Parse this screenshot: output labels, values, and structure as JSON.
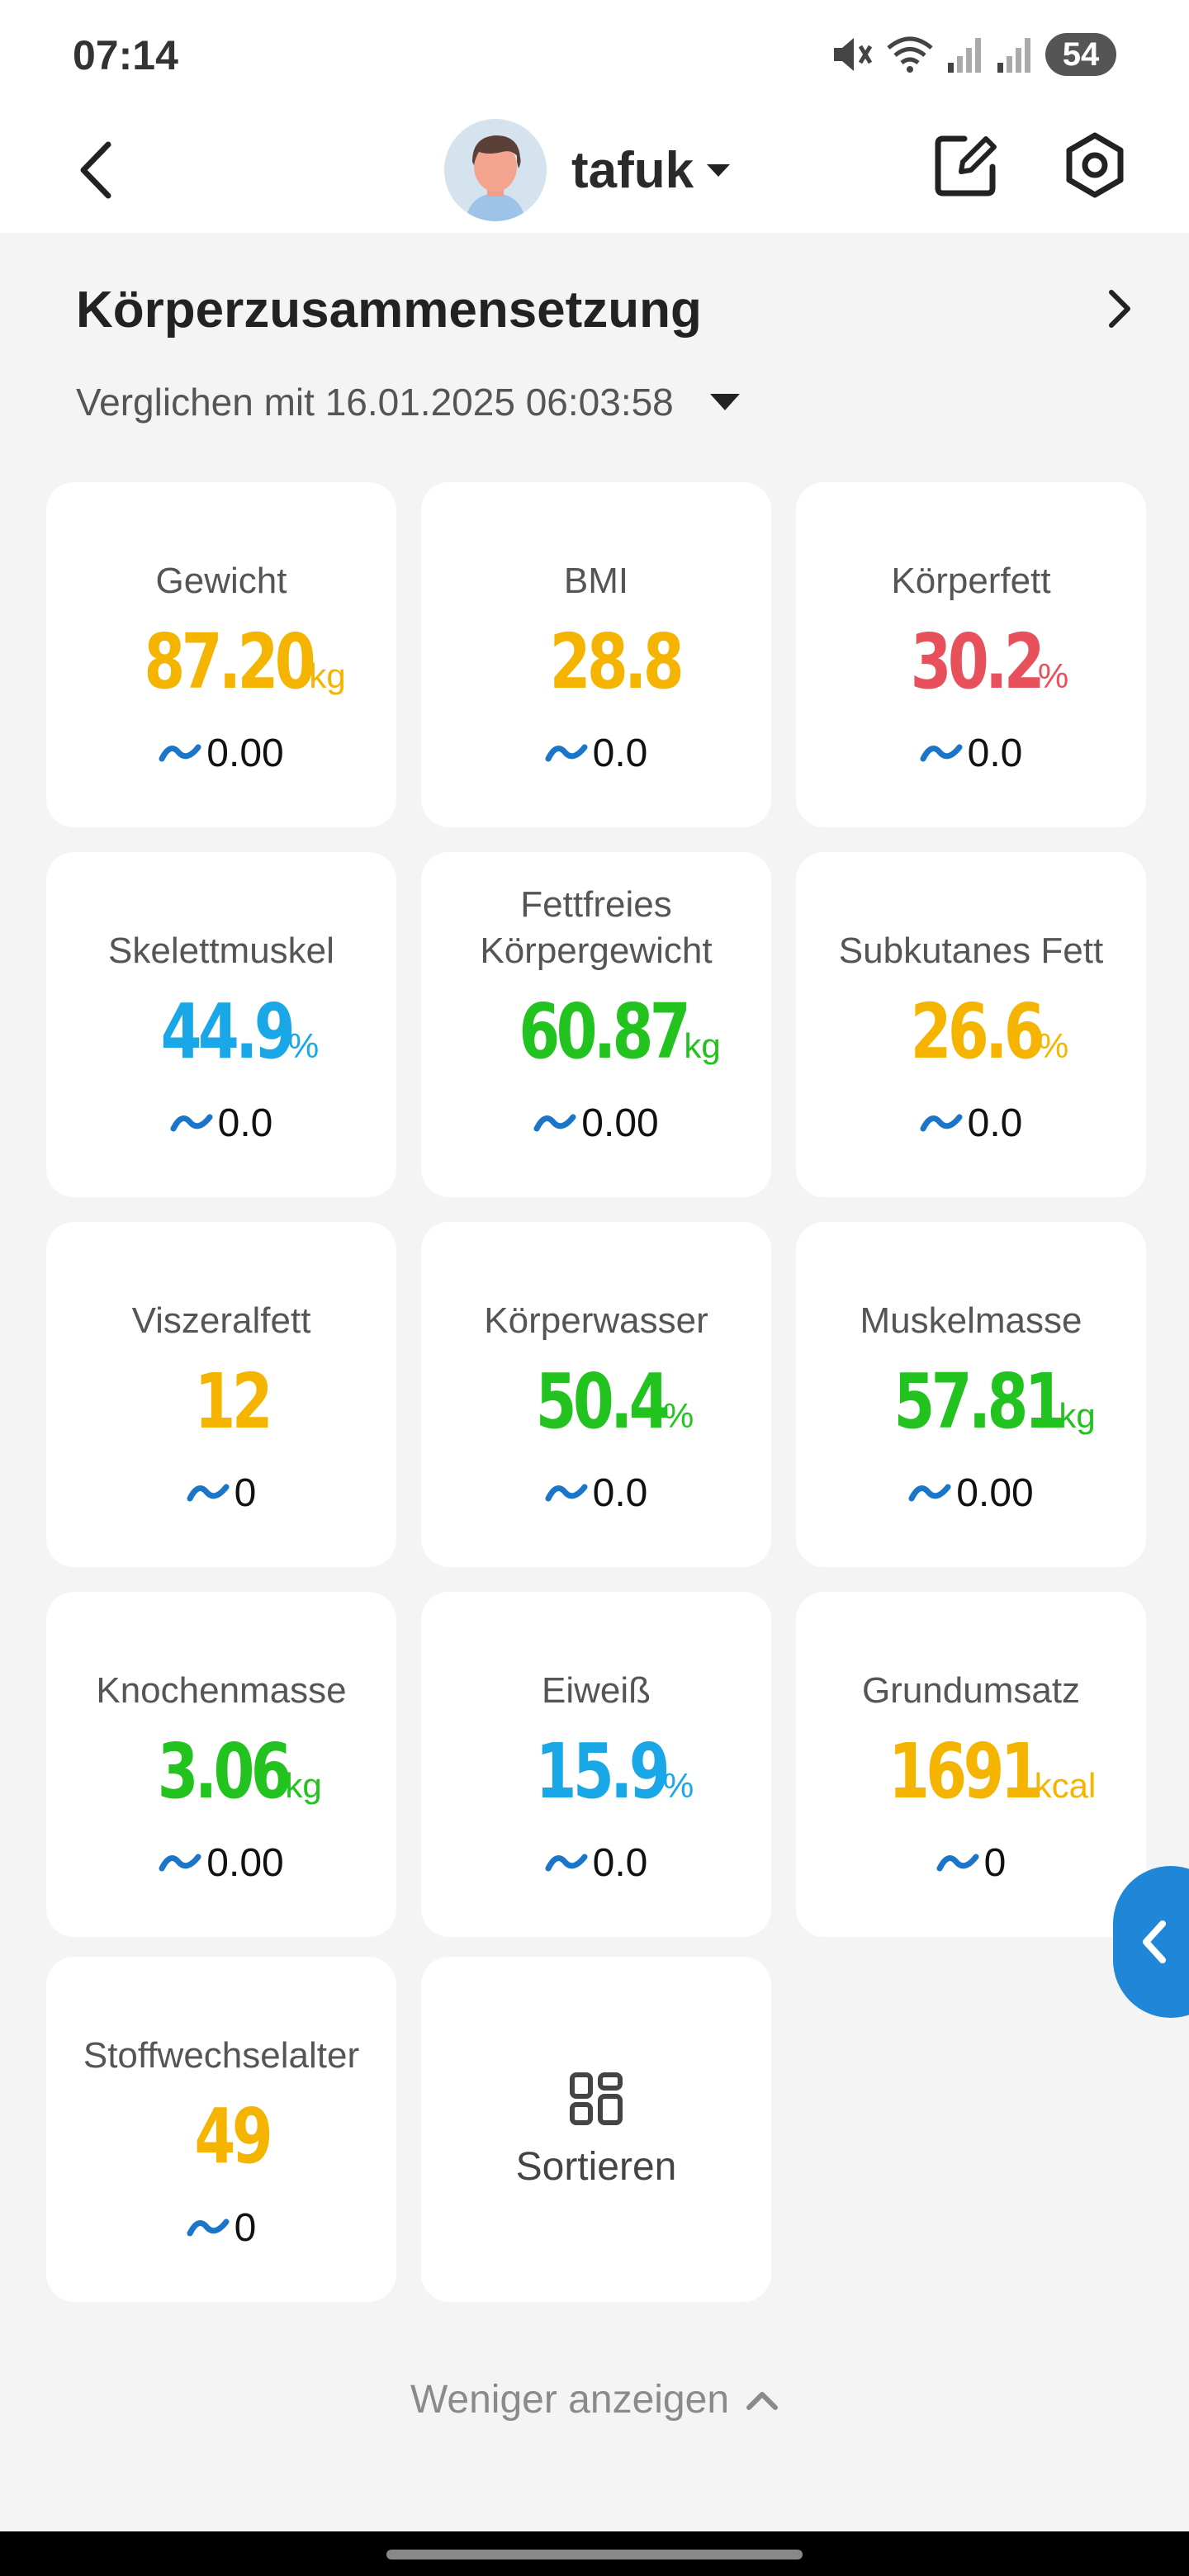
{
  "status_bar": {
    "time": "07:14",
    "battery": "54",
    "icons": [
      "mute-icon",
      "wifi-icon",
      "signal-icon",
      "signal-icon"
    ]
  },
  "header": {
    "username": "tafuk"
  },
  "section": {
    "title": "Körperzusammensetzung",
    "compare_text": "Verglichen mit 16.01.2025 06:03:58"
  },
  "colors": {
    "yellow": "#f5b400",
    "red": "#e8505b",
    "blue": "#1aa7e8",
    "green": "#22c31e",
    "accent": "#1f86d8"
  },
  "metrics": [
    {
      "label": "Gewicht",
      "value": "87.20",
      "unit": "kg",
      "delta": "0.00",
      "color": "yellow"
    },
    {
      "label": "BMI",
      "value": "28.8",
      "unit": "",
      "delta": "0.0",
      "color": "yellow"
    },
    {
      "label": "Körperfett",
      "value": "30.2",
      "unit": "%",
      "delta": "0.0",
      "color": "red"
    },
    {
      "label": "Skelettmuskel",
      "value": "44.9",
      "unit": "%",
      "delta": "0.0",
      "color": "blue"
    },
    {
      "label": "Fettfreies Körpergewicht",
      "value": "60.87",
      "unit": "kg",
      "delta": "0.00",
      "color": "green"
    },
    {
      "label": "Subkutanes Fett",
      "value": "26.6",
      "unit": "%",
      "delta": "0.0",
      "color": "yellow"
    },
    {
      "label": "Viszeralfett",
      "value": "12",
      "unit": "",
      "delta": "0",
      "color": "yellow"
    },
    {
      "label": "Körperwasser",
      "value": "50.4",
      "unit": "%",
      "delta": "0.0",
      "color": "green"
    },
    {
      "label": "Muskelmasse",
      "value": "57.81",
      "unit": "kg",
      "delta": "0.00",
      "color": "green"
    },
    {
      "label": "Knochenmasse",
      "value": "3.06",
      "unit": "kg",
      "delta": "0.00",
      "color": "green"
    },
    {
      "label": "Eiweiß",
      "value": "15.9",
      "unit": "%",
      "delta": "0.0",
      "color": "blue"
    },
    {
      "label": "Grundumsatz",
      "value": "1691",
      "unit": "kcal",
      "delta": "0",
      "color": "yellow"
    },
    {
      "label": "Stoffwechselalter",
      "value": "49",
      "unit": "",
      "delta": "0",
      "color": "yellow"
    }
  ],
  "sort": {
    "label": "Sortieren"
  },
  "footer": {
    "show_less": "Weniger anzeigen"
  }
}
